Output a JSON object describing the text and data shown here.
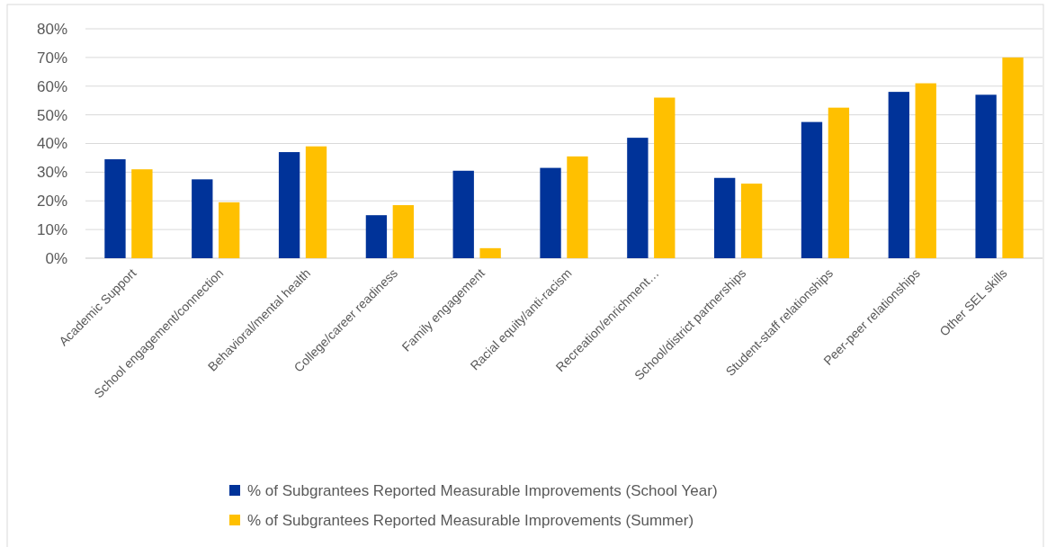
{
  "chart_data": {
    "type": "bar",
    "categories": [
      "Academic Support",
      "School engagement/connection",
      "Behavioral/mental health",
      "College/career readiness",
      "Family engagement",
      "Racial equity/anti-racism",
      "Recreation/enrichment…",
      "School/district partnerships",
      "Student-staff relationships",
      "Peer-peer relationships",
      "Other SEL skills"
    ],
    "series": [
      {
        "name": "% of Subgrantees Reported Measurable Improvements (School Year)",
        "color": "#003399",
        "values": [
          34.5,
          27.5,
          37,
          15,
          30.5,
          31.5,
          42,
          28,
          47.5,
          58,
          57
        ]
      },
      {
        "name": "% of Subgrantees Reported Measurable Improvements (Summer)",
        "color": "#ffc000",
        "values": [
          31,
          19.5,
          39,
          18.5,
          3.5,
          35.5,
          56,
          26,
          52.5,
          61,
          70
        ]
      }
    ],
    "ylim": [
      0,
      80
    ],
    "yticks": [
      {
        "value": 0,
        "label": "0%"
      },
      {
        "value": 10,
        "label": "10%"
      },
      {
        "value": 20,
        "label": "20%"
      },
      {
        "value": 30,
        "label": "30%"
      },
      {
        "value": 40,
        "label": "40%"
      },
      {
        "value": 50,
        "label": "50%"
      },
      {
        "value": 60,
        "label": "60%"
      },
      {
        "value": 70,
        "label": "70%"
      },
      {
        "value": 80,
        "label": "80%"
      }
    ],
    "grid": "y",
    "legend": "bottom"
  }
}
